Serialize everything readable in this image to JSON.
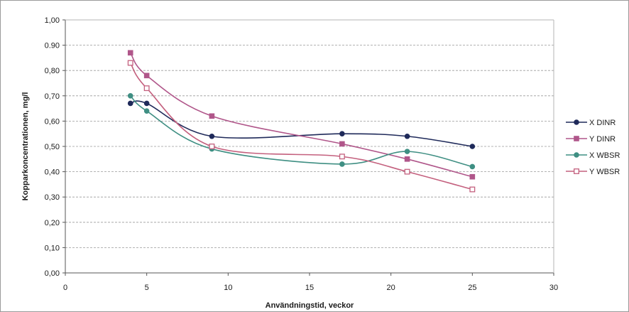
{
  "chart_data": {
    "type": "line",
    "xlabel": "Användningstid, veckor",
    "ylabel": "Kopparkoncentrationen, mg/l",
    "xlim": [
      0,
      30
    ],
    "ylim": [
      0,
      1
    ],
    "x_ticks": [
      "0",
      "5",
      "10",
      "15",
      "20",
      "25",
      "30"
    ],
    "y_ticks": [
      "0,00",
      "0,10",
      "0,20",
      "0,30",
      "0,40",
      "0,50",
      "0,60",
      "0,70",
      "0,80",
      "0.90",
      "1,00"
    ],
    "grid": true,
    "grid_style": "dashed horizontal",
    "legend_position": "right",
    "x": [
      4,
      5,
      9,
      17,
      21,
      25
    ],
    "series": [
      {
        "name": "X DINR",
        "values": [
          0.67,
          0.67,
          0.54,
          0.55,
          0.54,
          0.5
        ],
        "color": "#1f2a5a",
        "marker": "circle-filled"
      },
      {
        "name": "Y DINR",
        "values": [
          0.87,
          0.78,
          0.62,
          0.51,
          0.45,
          0.38
        ],
        "color": "#b0568a",
        "marker": "square-filled"
      },
      {
        "name": "X WBSR",
        "values": [
          0.7,
          0.64,
          0.49,
          0.43,
          0.48,
          0.42
        ],
        "color": "#3f8f83",
        "marker": "circle-filled"
      },
      {
        "name": "Y WBSR",
        "values": [
          0.83,
          0.73,
          0.5,
          0.46,
          0.4,
          0.33
        ],
        "color": "#c4607e",
        "marker": "square-open"
      }
    ]
  }
}
